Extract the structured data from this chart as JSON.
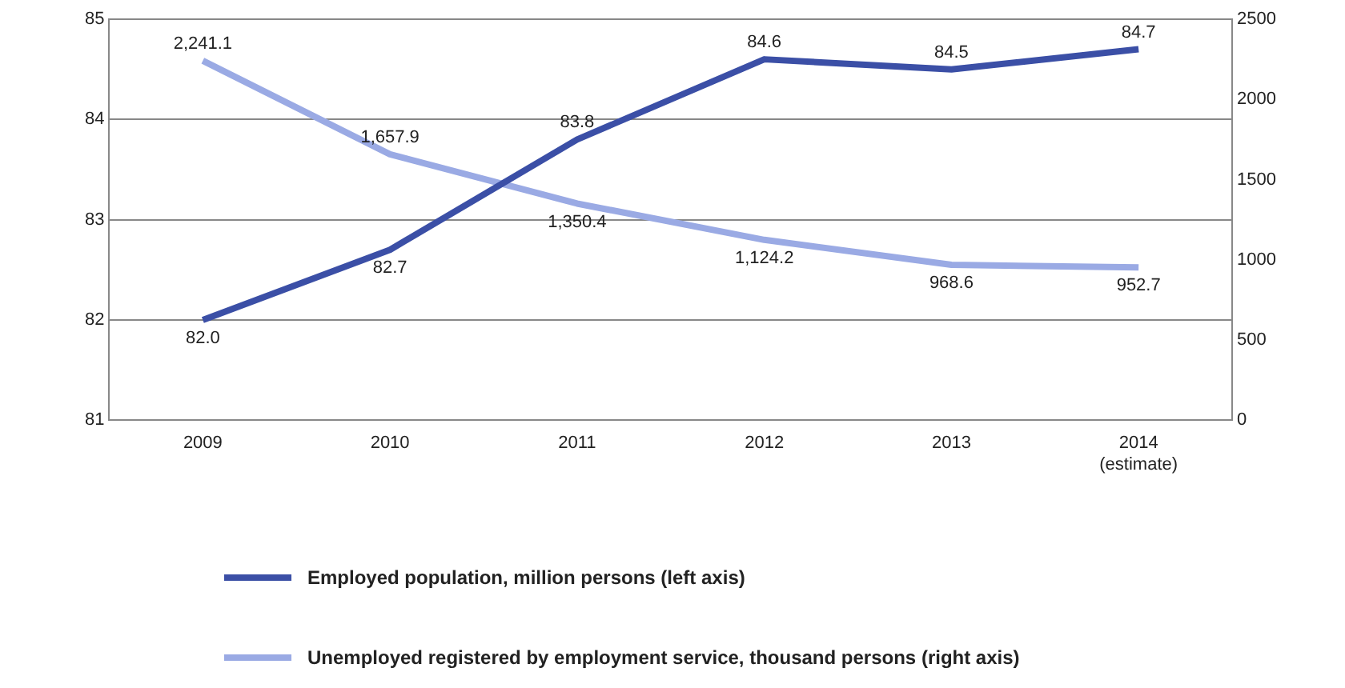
{
  "chart_data": {
    "type": "line",
    "categories": [
      "2009",
      "2010",
      "2011",
      "2012",
      "2013",
      "2014\n(estimate)"
    ],
    "series": [
      {
        "name": "Employed population, million persons (left axis)",
        "color": "#3b4fa6",
        "values": [
          82.0,
          82.7,
          83.8,
          84.6,
          84.5,
          84.7
        ],
        "value_labels": [
          "82.0",
          "82.7",
          "83.8",
          "84.6",
          "84.5",
          "84.7"
        ]
      },
      {
        "name": "Unemployed registered by employment service, thousand persons (right axis)",
        "color": "#9aaae4",
        "axis": "y2",
        "values": [
          2241.1,
          1657.9,
          1350.4,
          1124.2,
          968.6,
          952.7
        ],
        "value_labels": [
          "2,241.1",
          "1,657.9",
          "1,350.4",
          "1,124.2",
          "968.6",
          "952.7"
        ]
      }
    ],
    "ylim": [
      81,
      85
    ],
    "yticks": [
      81,
      82,
      83,
      84,
      85
    ],
    "y2lim": [
      0,
      2500
    ],
    "y2ticks": [
      0,
      500,
      1000,
      1500,
      2000,
      2500
    ],
    "grid": "y",
    "legend": "bottom left",
    "marker": "none",
    "line_style": "solid"
  }
}
